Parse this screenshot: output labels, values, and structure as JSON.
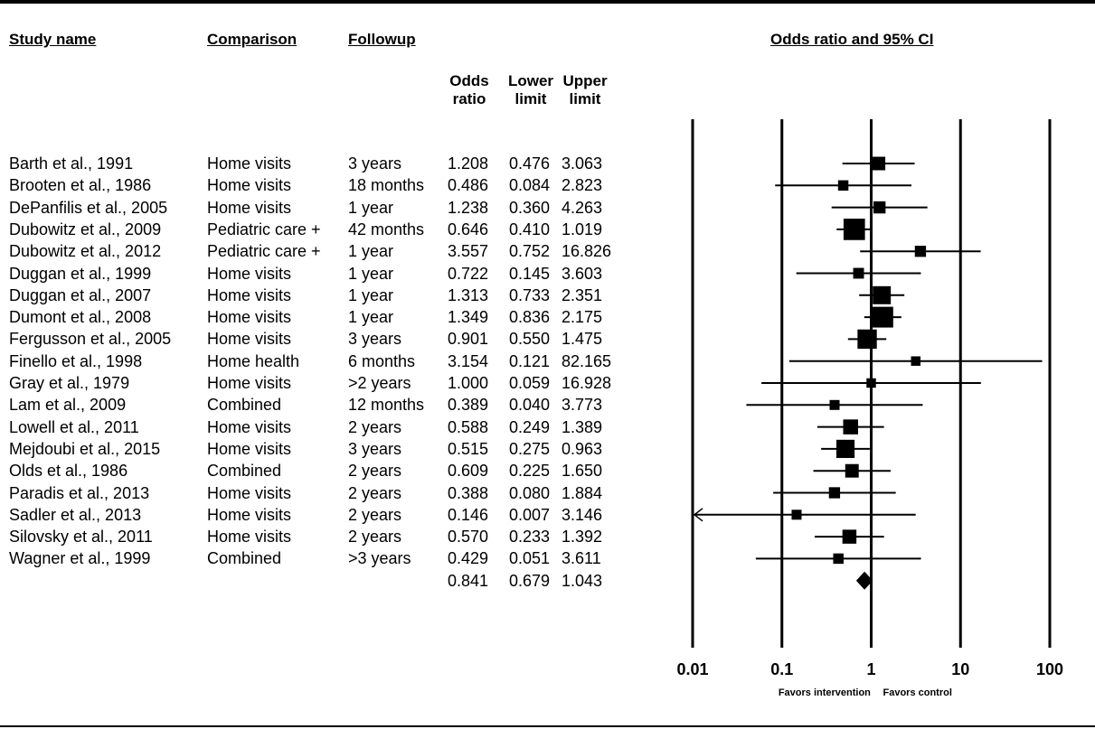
{
  "headers": {
    "study": "Study name",
    "comparison": "Comparison",
    "followup": "Followup",
    "odds": [
      "Odds",
      "ratio"
    ],
    "lower": [
      "Lower",
      "limit"
    ],
    "upper": [
      "Upper",
      "limit"
    ],
    "plot_title": "Odds ratio and 95% CI"
  },
  "rows": [
    {
      "study": "Barth et al., 1991",
      "comparison": "Home visits",
      "followup": "3 years",
      "or": "1.208",
      "lower": "0.476",
      "upper": "3.063"
    },
    {
      "study": "Brooten et al., 1986",
      "comparison": "Home visits",
      "followup": "18 months",
      "or": "0.486",
      "lower": "0.084",
      "upper": "2.823"
    },
    {
      "study": "DePanfilis et al., 2005",
      "comparison": "Home visits",
      "followup": "1 year",
      "or": "1.238",
      "lower": "0.360",
      "upper": "4.263"
    },
    {
      "study": "Dubowitz et al., 2009",
      "comparison": "Pediatric care +",
      "followup": "42 months",
      "or": "0.646",
      "lower": "0.410",
      "upper": "1.019"
    },
    {
      "study": "Dubowitz et al., 2012",
      "comparison": "Pediatric care +",
      "followup": "1 year",
      "or": "3.557",
      "lower": "0.752",
      "upper": "16.826"
    },
    {
      "study": "Duggan et al., 1999",
      "comparison": "Home visits",
      "followup": "1 year",
      "or": "0.722",
      "lower": "0.145",
      "upper": "3.603"
    },
    {
      "study": "Duggan et al., 2007",
      "comparison": "Home visits",
      "followup": "1 year",
      "or": "1.313",
      "lower": "0.733",
      "upper": "2.351"
    },
    {
      "study": "Dumont et al., 2008",
      "comparison": "Home visits",
      "followup": "1 year",
      "or": "1.349",
      "lower": "0.836",
      "upper": "2.175"
    },
    {
      "study": "Fergusson et al., 2005",
      "comparison": "Home visits",
      "followup": "3 years",
      "or": "0.901",
      "lower": "0.550",
      "upper": "1.475"
    },
    {
      "study": "Finello et al., 1998",
      "comparison": "Home health",
      "followup": "6 months",
      "or": "3.154",
      "lower": "0.121",
      "upper": "82.165"
    },
    {
      "study": "Gray et al., 1979",
      "comparison": "Home visits",
      "followup": ">2 years",
      "or": "1.000",
      "lower": "0.059",
      "upper": "16.928"
    },
    {
      "study": "Lam et al., 2009",
      "comparison": "Combined",
      "followup": "12 months",
      "or": "0.389",
      "lower": "0.040",
      "upper": "3.773"
    },
    {
      "study": "Lowell et al., 2011",
      "comparison": "Home visits",
      "followup": "2 years",
      "or": "0.588",
      "lower": "0.249",
      "upper": "1.389"
    },
    {
      "study": "Mejdoubi et al., 2015",
      "comparison": "Home visits",
      "followup": "3 years",
      "or": "0.515",
      "lower": "0.275",
      "upper": "0.963"
    },
    {
      "study": "Olds et al., 1986",
      "comparison": "Combined",
      "followup": "2 years",
      "or": "0.609",
      "lower": "0.225",
      "upper": "1.650"
    },
    {
      "study": "Paradis et al., 2013",
      "comparison": "Home visits",
      "followup": "2 years",
      "or": "0.388",
      "lower": "0.080",
      "upper": "1.884"
    },
    {
      "study": "Sadler et al., 2013",
      "comparison": "Home visits",
      "followup": "2 years",
      "or": "0.146",
      "lower": "0.007",
      "upper": "3.146"
    },
    {
      "study": "Silovsky et al., 2011",
      "comparison": "Home visits",
      "followup": "2 years",
      "or": "0.570",
      "lower": "0.233",
      "upper": "1.392"
    },
    {
      "study": "Wagner et al., 1999",
      "comparison": "Combined",
      "followup": ">3 years",
      "or": "0.429",
      "lower": "0.051",
      "upper": "3.611"
    }
  ],
  "summary": {
    "or": "0.841",
    "lower": "0.679",
    "upper": "1.043"
  },
  "axis": {
    "ticks": [
      "0.01",
      "0.1",
      "1",
      "10",
      "100"
    ],
    "favors_left": "Favors intervention",
    "favors_right": "Favors control"
  },
  "chart_data": {
    "type": "forest",
    "title": "Odds ratio and 95% CI",
    "scale": "log",
    "xlim": [
      0.01,
      100
    ],
    "xticks": [
      0.01,
      0.1,
      1,
      10,
      100
    ],
    "reference_line": 1,
    "studies": [
      {
        "name": "Barth et al., 1991",
        "or": 1.208,
        "lower": 0.476,
        "upper": 3.063,
        "weight": 3.2
      },
      {
        "name": "Brooten et al., 1986",
        "or": 0.486,
        "lower": 0.084,
        "upper": 2.823,
        "weight": 1.2
      },
      {
        "name": "DePanfilis et al., 2005",
        "or": 1.238,
        "lower": 0.36,
        "upper": 4.263,
        "weight": 2.2
      },
      {
        "name": "Dubowitz et al., 2009",
        "or": 0.646,
        "lower": 0.41,
        "upper": 1.019,
        "weight": 12.5
      },
      {
        "name": "Dubowitz et al., 2012",
        "or": 3.557,
        "lower": 0.752,
        "upper": 16.826,
        "weight": 1.6
      },
      {
        "name": "Duggan et al., 1999",
        "or": 0.722,
        "lower": 0.145,
        "upper": 3.603,
        "weight": 1.4
      },
      {
        "name": "Duggan et al., 2007",
        "or": 1.313,
        "lower": 0.733,
        "upper": 2.351,
        "weight": 7.8
      },
      {
        "name": "Dumont et al., 2008",
        "or": 1.349,
        "lower": 0.836,
        "upper": 2.175,
        "weight": 11.5
      },
      {
        "name": "Fergusson et al., 2005",
        "or": 0.901,
        "lower": 0.55,
        "upper": 1.475,
        "weight": 9.4
      },
      {
        "name": "Finello et al., 1998",
        "or": 3.154,
        "lower": 0.121,
        "upper": 82.165,
        "weight": 0.8
      },
      {
        "name": "Gray et al., 1979",
        "or": 1.0,
        "lower": 0.059,
        "upper": 16.928,
        "weight": 0.8
      },
      {
        "name": "Lam et al., 2009",
        "or": 0.389,
        "lower": 0.04,
        "upper": 3.773,
        "weight": 1.0
      },
      {
        "name": "Lowell et al., 2011",
        "or": 0.588,
        "lower": 0.249,
        "upper": 1.389,
        "weight": 4.4
      },
      {
        "name": "Mejdoubi et al., 2015",
        "or": 0.515,
        "lower": 0.275,
        "upper": 0.963,
        "weight": 8.0
      },
      {
        "name": "Olds et al., 1986",
        "or": 0.609,
        "lower": 0.225,
        "upper": 1.65,
        "weight": 3.2
      },
      {
        "name": "Paradis et al., 2013",
        "or": 0.388,
        "lower": 0.08,
        "upper": 1.884,
        "weight": 1.6
      },
      {
        "name": "Sadler et al., 2013",
        "or": 0.146,
        "lower": 0.007,
        "upper": 3.146,
        "weight": 1.0
      },
      {
        "name": "Silovsky et al., 2011",
        "or": 0.57,
        "lower": 0.233,
        "upper": 1.392,
        "weight": 3.6
      },
      {
        "name": "Wagner et al., 1999",
        "or": 0.429,
        "lower": 0.051,
        "upper": 3.611,
        "weight": 1.2
      }
    ],
    "summary": {
      "or": 0.841,
      "lower": 0.679,
      "upper": 1.043
    },
    "xlabel_left": "Favors intervention",
    "xlabel_right": "Favors control"
  }
}
